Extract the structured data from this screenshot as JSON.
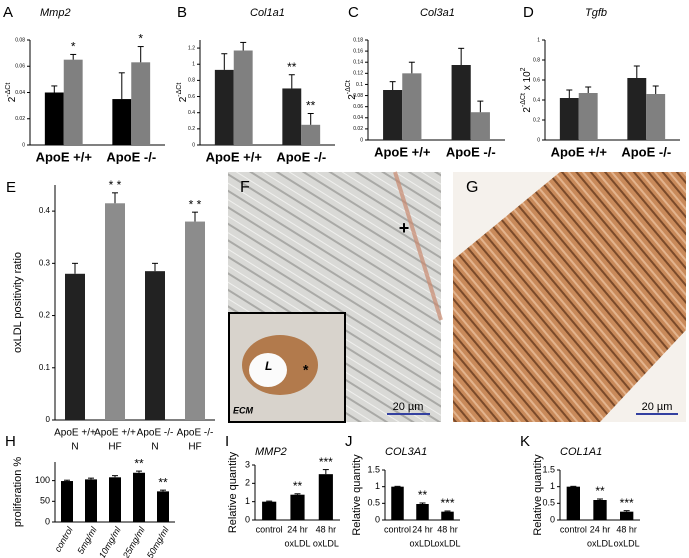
{
  "chart_data": [
    {
      "type": "grouped_bar",
      "panel": "A",
      "title": "Mmp2",
      "ylabel_parts": [
        "2",
        "-ΔCt"
      ],
      "categories": [
        "ApoE +/+",
        "ApoE -/-"
      ],
      "ylim": [
        0,
        0.08
      ],
      "yticks": [
        0,
        0.02,
        0.04,
        0.06,
        0.08
      ],
      "series": [
        {
          "color": "#000000",
          "values": [
            0.04,
            0.035
          ],
          "errors": [
            0.005,
            0.02
          ],
          "significance": [
            null,
            null
          ]
        },
        {
          "color": "#808080",
          "values": [
            0.065,
            0.063
          ],
          "errors": [
            0.004,
            0.012
          ],
          "significance": [
            "*",
            "*"
          ]
        }
      ]
    },
    {
      "type": "grouped_bar",
      "panel": "B",
      "title": "Col1a1",
      "ylabel_parts": [
        "2",
        "-ΔCt"
      ],
      "categories": [
        "ApoE +/+",
        "ApoE -/-"
      ],
      "ylim": [
        0,
        1.3
      ],
      "yticks": [
        0,
        0.2,
        0.4,
        0.6,
        0.8,
        1,
        1.2
      ],
      "series": [
        {
          "color": "#222222",
          "values": [
            0.93,
            0.7
          ],
          "errors": [
            0.2,
            0.17
          ],
          "significance": [
            null,
            "**"
          ]
        },
        {
          "color": "#808080",
          "values": [
            1.17,
            0.25
          ],
          "errors": [
            0.1,
            0.14
          ],
          "significance": [
            null,
            "**"
          ]
        }
      ]
    },
    {
      "type": "grouped_bar",
      "panel": "C",
      "title": "Col3a1",
      "ylabel_parts": [
        "2",
        "-ΔCt"
      ],
      "categories": [
        "ApoE +/+",
        "ApoE -/-"
      ],
      "ylim": [
        0,
        0.18
      ],
      "yticks": [
        0,
        0.02,
        0.04,
        0.06,
        0.08,
        0.1,
        0.12,
        0.14,
        0.16,
        0.18
      ],
      "series": [
        {
          "color": "#222222",
          "values": [
            0.09,
            0.135
          ],
          "errors": [
            0.015,
            0.03
          ],
          "significance": [
            null,
            null
          ]
        },
        {
          "color": "#808080",
          "values": [
            0.12,
            0.05
          ],
          "errors": [
            0.02,
            0.02
          ],
          "significance": [
            null,
            null
          ]
        }
      ]
    },
    {
      "type": "grouped_bar",
      "panel": "D",
      "title": "Tgfb",
      "ylabel_parts": [
        "2",
        "-ΔCt",
        " x 10",
        "2"
      ],
      "categories": [
        "ApoE +/+",
        "ApoE -/-"
      ],
      "ylim": [
        0,
        1
      ],
      "yticks": [
        0,
        0.2,
        0.4,
        0.6,
        0.8,
        1
      ],
      "series": [
        {
          "color": "#222222",
          "values": [
            0.42,
            0.62
          ],
          "errors": [
            0.08,
            0.12
          ],
          "significance": [
            null,
            null
          ]
        },
        {
          "color": "#808080",
          "values": [
            0.47,
            0.46
          ],
          "errors": [
            0.06,
            0.08
          ],
          "significance": [
            null,
            null
          ]
        }
      ]
    },
    {
      "type": "bar",
      "panel": "E",
      "ylabel_parts": [
        "oxLDL positivity ratio"
      ],
      "categories": [
        [
          "ApoE +/+",
          "N"
        ],
        [
          "ApoE +/+",
          "HF"
        ],
        [
          "ApoE -/-",
          "N"
        ],
        [
          "ApoE -/-",
          "HF"
        ]
      ],
      "values": [
        0.28,
        0.415,
        0.285,
        0.38
      ],
      "errors": [
        0.02,
        0.02,
        0.015,
        0.018
      ],
      "colors": [
        "#222222",
        "#8c8c8c",
        "#222222",
        "#8c8c8c"
      ],
      "significance": [
        null,
        "* *",
        null,
        "* *"
      ],
      "ylim": [
        0,
        0.45
      ],
      "yticks": [
        0,
        0.1,
        0.2,
        0.3,
        0.4
      ]
    },
    {
      "type": "bar",
      "panel": "H",
      "ylabel_parts": [
        "proliferation %"
      ],
      "categories": [
        "control",
        "5mg/ml",
        "10mg/ml",
        "25mg/ml",
        "50mg/ml"
      ],
      "values": [
        99,
        103,
        108,
        119,
        74
      ],
      "errors": [
        2,
        3,
        4,
        4,
        3
      ],
      "color": "#000000",
      "significance": [
        null,
        null,
        null,
        "**",
        "**"
      ],
      "ylim": [
        0,
        145
      ],
      "yticks": [
        0,
        50,
        100
      ]
    },
    {
      "type": "bar",
      "panel": "I",
      "title": "MMP2",
      "ylabel_parts": [
        "Relative quantity"
      ],
      "categories": [
        [
          "control"
        ],
        [
          "24 hr",
          "oxLDL"
        ],
        [
          "48 hr",
          "oxLDL"
        ]
      ],
      "values": [
        1,
        1.38,
        2.5
      ],
      "errors": [
        0.03,
        0.05,
        0.25
      ],
      "color": "#000000",
      "significance": [
        null,
        "**",
        "***"
      ],
      "ylim": [
        0,
        3
      ],
      "yticks": [
        0,
        1,
        2,
        3
      ]
    },
    {
      "type": "bar",
      "panel": "J",
      "title": "COL3A1",
      "ylabel_parts": [
        "Relative quantity"
      ],
      "categories": [
        [
          "control"
        ],
        [
          "24 hr",
          "oxLDL"
        ],
        [
          "48 hr",
          "oxLDL"
        ]
      ],
      "values": [
        1,
        0.48,
        0.25
      ],
      "errors": [
        0.01,
        0.03,
        0.02
      ],
      "color": "#000000",
      "significance": [
        null,
        "**",
        "***"
      ],
      "ylim": [
        0,
        1.5
      ],
      "yticks": [
        0,
        0.5,
        1,
        1.5
      ]
    },
    {
      "type": "bar",
      "panel": "K",
      "title": "COL1A1",
      "ylabel_parts": [
        "Relative quantity"
      ],
      "categories": [
        [
          "control"
        ],
        [
          "24 hr",
          "oxLDL"
        ],
        [
          "48 hr",
          "oxLDL"
        ]
      ],
      "values": [
        1,
        0.6,
        0.25
      ],
      "errors": [
        0.01,
        0.03,
        0.03
      ],
      "color": "#000000",
      "significance": [
        null,
        "**",
        "***"
      ],
      "ylim": [
        0,
        1.5
      ],
      "yticks": [
        0,
        0.5,
        1,
        1.5
      ]
    }
  ],
  "images": {
    "F": {
      "panel": "F",
      "marker": "+",
      "scale": "20 µm",
      "inset": {
        "lumen": "L",
        "matrix": "ECM",
        "marker": "*"
      }
    },
    "G": {
      "panel": "G",
      "scale": "20 µm"
    }
  }
}
